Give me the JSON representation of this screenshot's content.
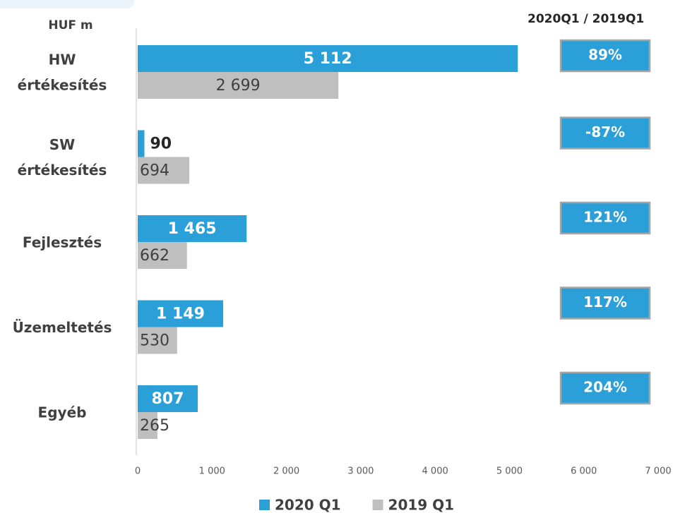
{
  "chart_data": {
    "type": "bar",
    "unit_label": "HUF m",
    "categories": [
      [
        "HW",
        "értékesítés"
      ],
      [
        "SW",
        "értékesítés"
      ],
      [
        "Fejlesztés"
      ],
      [
        "Üzemeltetés"
      ],
      [
        "Egyéb"
      ]
    ],
    "series": [
      {
        "name": "2020 Q1",
        "color": "#2a9fd8",
        "values": [
          5112,
          90,
          1465,
          1149,
          807
        ],
        "value_labels": [
          "5 112",
          "90",
          "1 465",
          "1 149",
          "807"
        ]
      },
      {
        "name": "2019 Q1",
        "color": "#bfbfbf",
        "values": [
          2699,
          694,
          662,
          530,
          265
        ],
        "value_labels": [
          "2 699",
          "694",
          "662",
          "530",
          "265"
        ]
      }
    ],
    "xlim": [
      0,
      7000
    ],
    "xticks": [
      0,
      {
        "value": 1000,
        "label": "1 000"
      },
      {
        "value": 2000,
        "label": "2 000"
      },
      {
        "value": 3000,
        "label": "3 000"
      },
      {
        "value": 4000,
        "label": "4 000"
      },
      {
        "value": 5000,
        "label": "5 000"
      },
      {
        "value": 6000,
        "label": "6 000"
      },
      {
        "value": 7000,
        "label": "7 000"
      }
    ],
    "ratios": {
      "title": "2020Q1 / 2019Q1",
      "values": [
        89,
        -87,
        121,
        117,
        204
      ],
      "value_labels": [
        "89%",
        "-87%",
        "121%",
        "117%",
        "204%"
      ]
    }
  }
}
